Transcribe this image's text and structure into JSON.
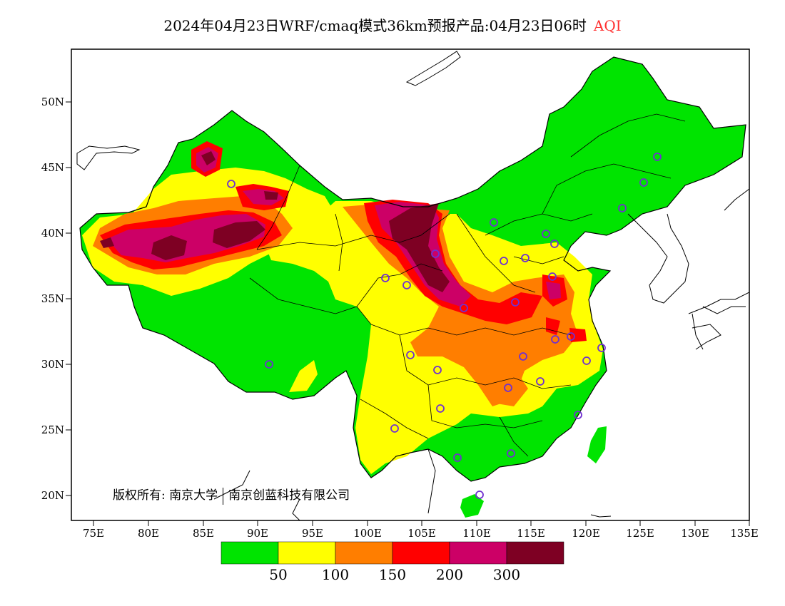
{
  "title": {
    "text": "2024年04月23日WRF/cmaq模式36km预报产品:04月23日06时",
    "variable": "AQI",
    "variable_color": "#ff3030"
  },
  "map": {
    "lon_range": [
      73,
      135
    ],
    "lat_range": [
      18,
      54
    ],
    "lat_labels": [
      "50N",
      "45N",
      "40N",
      "35N",
      "30N",
      "25N",
      "20N"
    ],
    "lon_labels": [
      "75E",
      "80E",
      "85E",
      "90E",
      "95E",
      "100E",
      "105E",
      "110E",
      "115E",
      "120E",
      "125E",
      "130E",
      "135E"
    ]
  },
  "copyright": {
    "label": "版权所有:",
    "org1": "南京大学",
    "org2": "南京创蓝科技有限公司"
  },
  "colorbar": {
    "colors": [
      "#00e400",
      "#ffff00",
      "#ff7e00",
      "#ff0000",
      "#cc0066",
      "#7e0023"
    ],
    "labels": [
      "50",
      "100",
      "150",
      "200",
      "300"
    ]
  },
  "station_marker_color": "#7030d0"
}
